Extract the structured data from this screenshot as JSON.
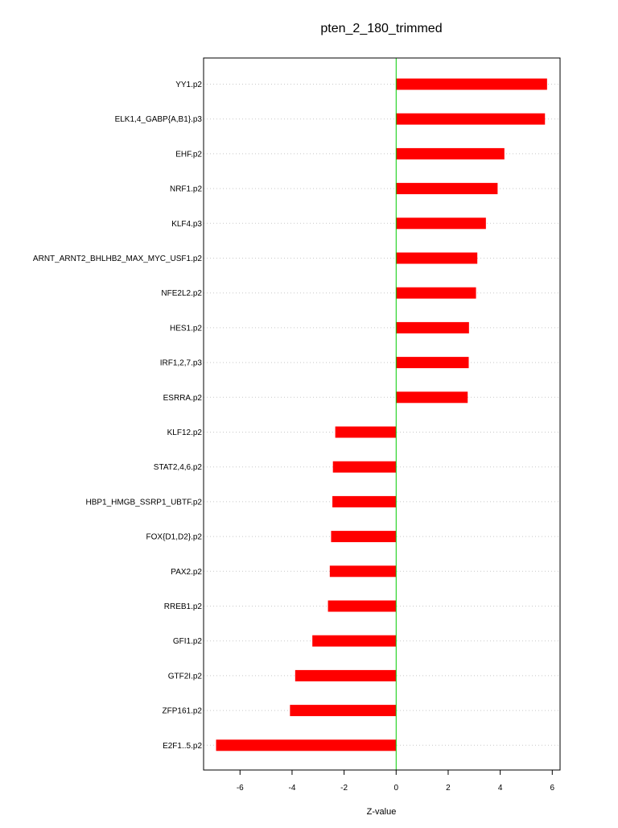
{
  "chart_data": {
    "type": "bar",
    "orientation": "horizontal",
    "title": "pten_2_180_trimmed",
    "xlabel": "Z-value",
    "ylabel": "",
    "xlim": [
      -7.4,
      6.3
    ],
    "xticks": [
      -6,
      -4,
      -2,
      0,
      2,
      4,
      6
    ],
    "reference_line": {
      "x": 0,
      "color": "#00cc00"
    },
    "grid": "horizontal dotted",
    "bar_color": "#ff0000",
    "categories": [
      "YY1.p2",
      "ELK1,4_GABP{A,B1}.p3",
      "EHF.p2",
      "NRF1.p2",
      "KLF4.p3",
      "ARNT_ARNT2_BHLHB2_MAX_MYC_USF1.p2",
      "NFE2L2.p2",
      "HES1.p2",
      "IRF1,2,7.p3",
      "ESRRA.p2",
      "KLF12.p2",
      "STAT2,4,6.p2",
      "HBP1_HMGB_SSRP1_UBTF.p2",
      "FOX{D1,D2}.p2",
      "PAX2.p2",
      "RREB1.p2",
      "GFI1.p2",
      "GTF2I.p2",
      "ZFP161.p2",
      "E2F1..5.p2"
    ],
    "values": [
      5.8,
      5.72,
      4.16,
      3.9,
      3.45,
      3.12,
      3.07,
      2.8,
      2.79,
      2.75,
      -2.34,
      -2.43,
      -2.45,
      -2.5,
      -2.55,
      -2.62,
      -3.22,
      -3.88,
      -4.08,
      -6.92
    ]
  }
}
